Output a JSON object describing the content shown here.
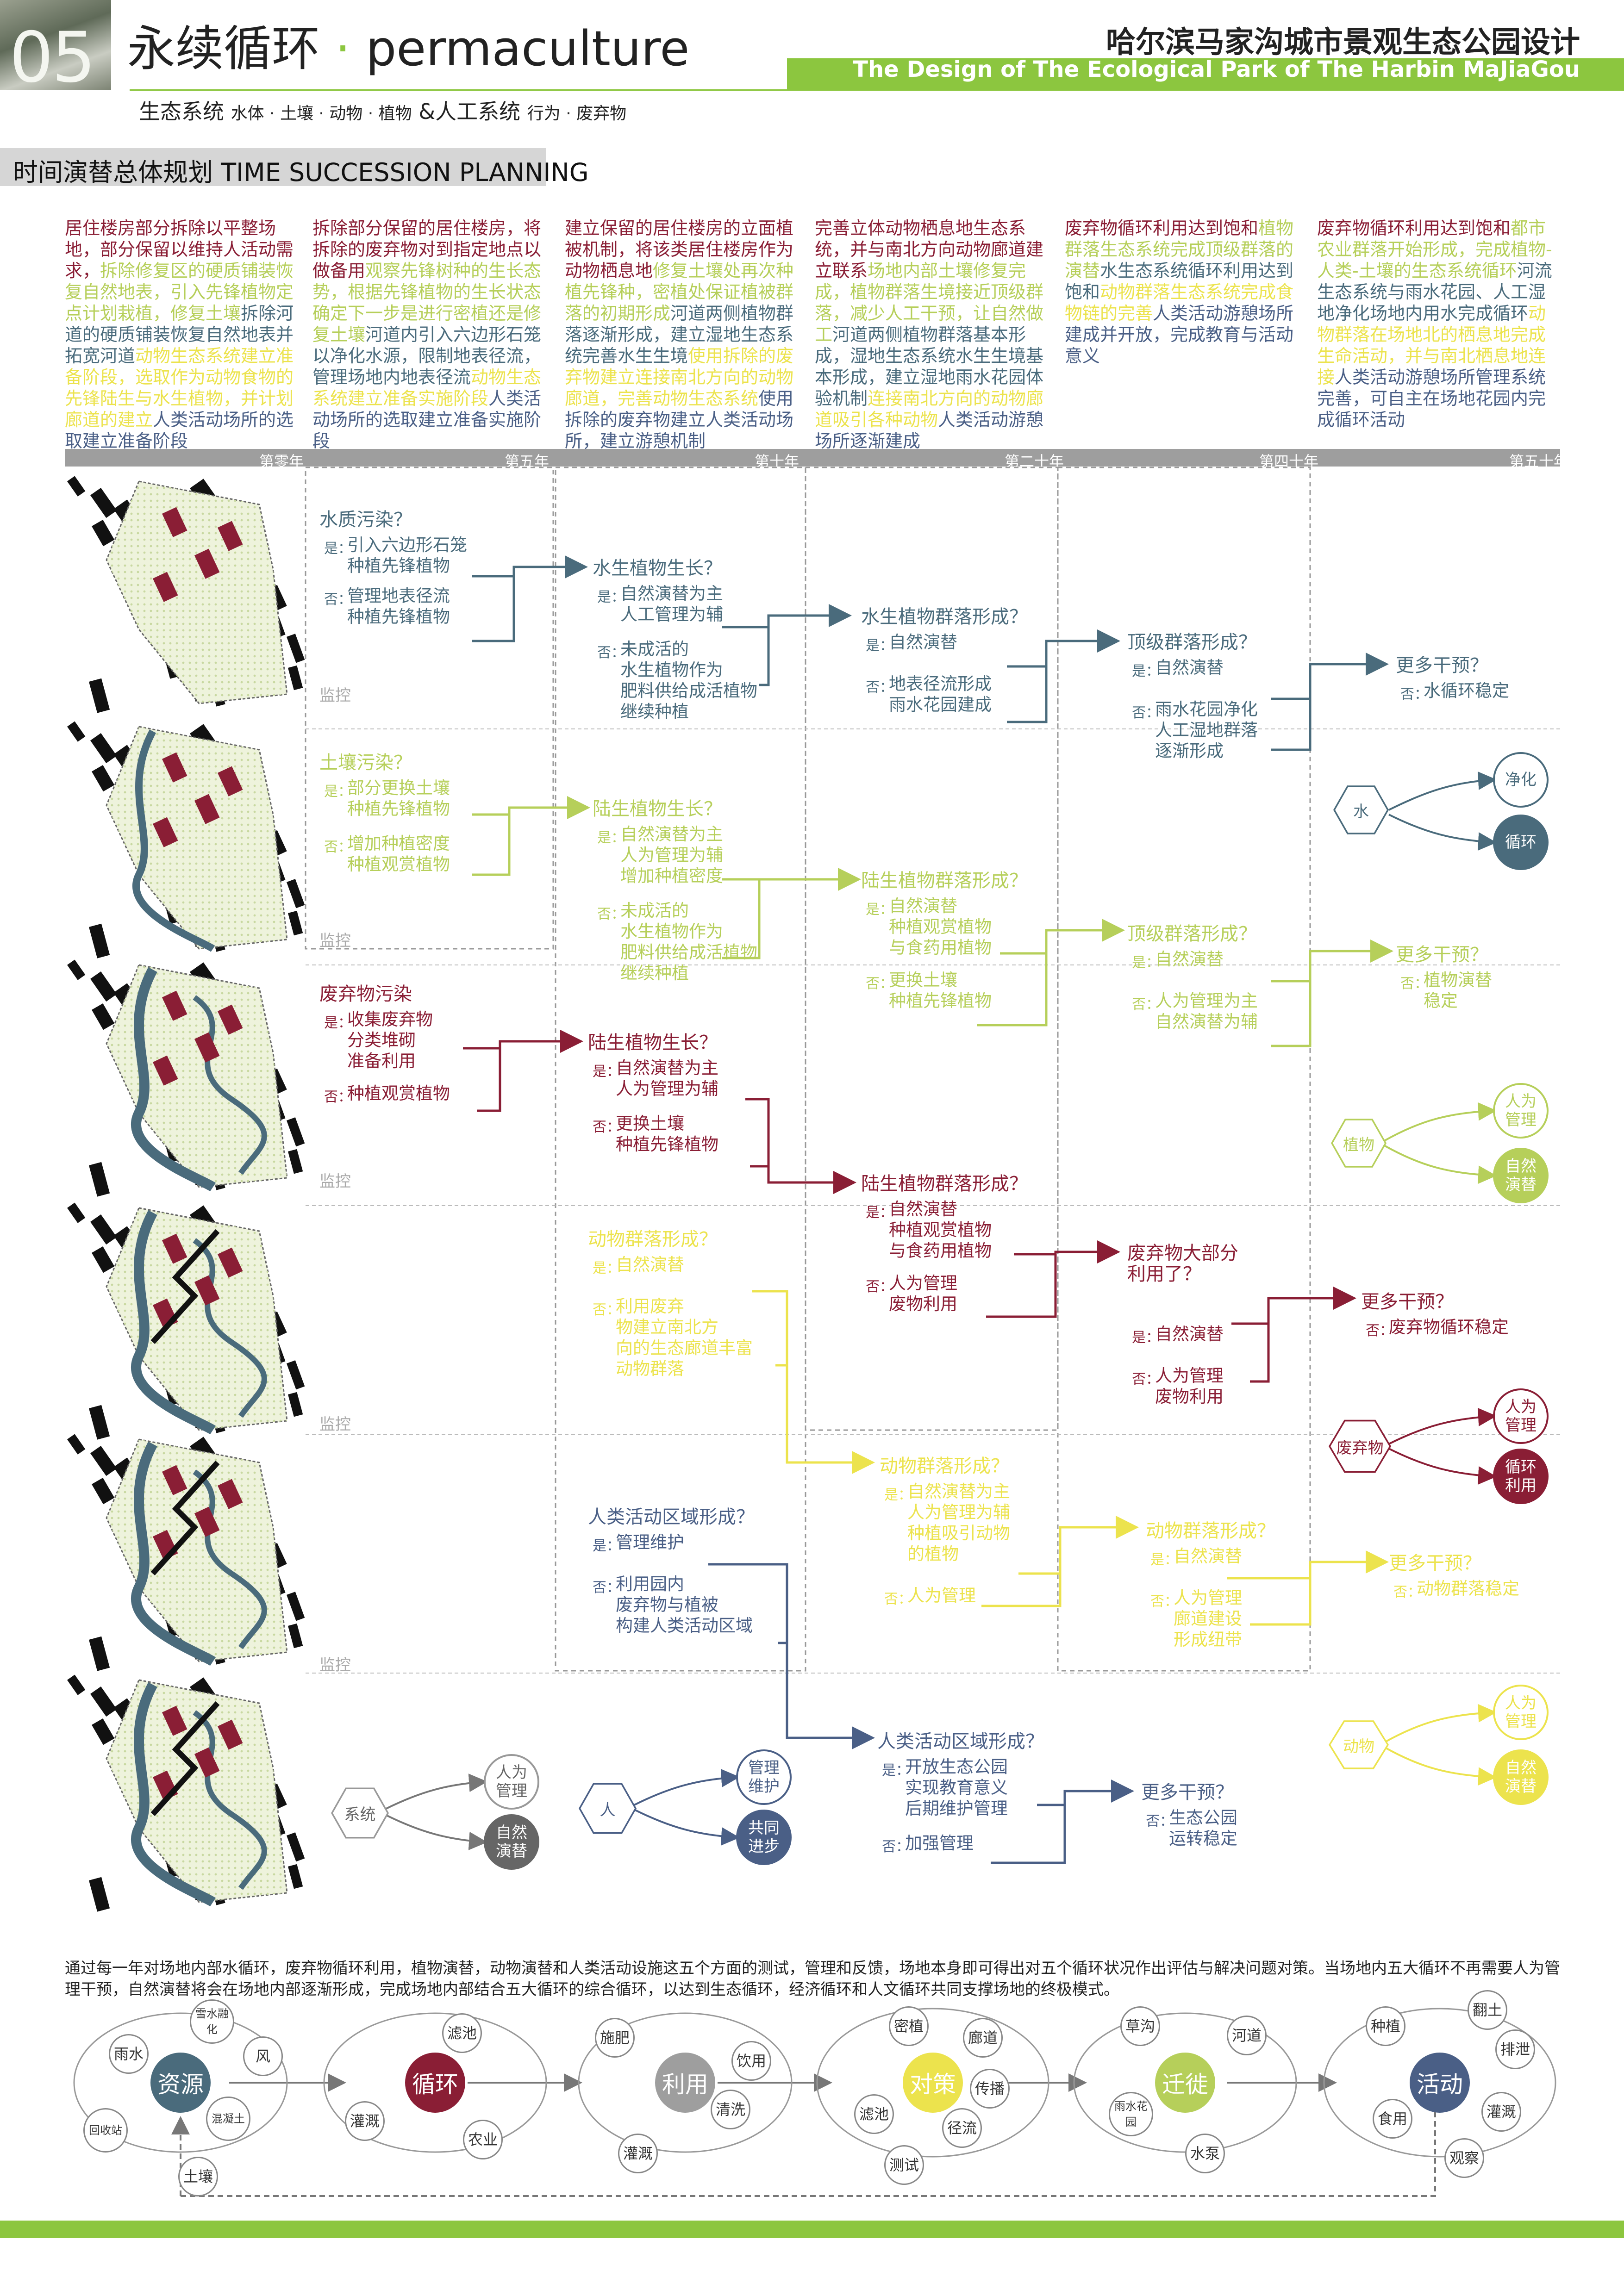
{
  "header": {
    "number": "05",
    "title_cn": "永续循环",
    "dot": "·",
    "title_en": "permaculture",
    "project_cn": "哈尔滨马家沟城市景观生态公园设计",
    "project_en": "The Design of The Ecological Park of The Harbin MaJiaGou",
    "subtitle_a": "生态系统",
    "subtitle_a_small": "水体 · 土壤 · 动物 · 植物",
    "subtitle_b": "&人工系统",
    "subtitle_b_small": "行为 · 废弃物"
  },
  "section_title": "时间演替总体规划 TIME SUCCESSION PLANNING",
  "colors": {
    "water": "#4a6b7c",
    "soil": "#b6cf5a",
    "waste": "#8a1e35",
    "animal": "#ece34d",
    "human": "#4a5f86",
    "accent": "#8cc63f"
  },
  "columns": [
    {
      "parts": [
        [
          "居住楼房部分拆除以平整场地，部分保留以维持人活动需求，",
          "#8a1e35"
        ],
        [
          "拆除修复区的硬质铺装恢复自然地表，引入先锋植物定点计划栽植，修复土壤",
          "#b6cf5a"
        ],
        [
          "拆除河道的硬质铺装恢复自然地表并拓宽河道",
          "#4a6b7c"
        ],
        [
          "动物生态系统建立准备阶段，选取作为动物食物的先锋陆生与水生植物，并计划廊道的建立",
          "#ece34d"
        ],
        [
          "人类活动场所的选取建立准备阶段",
          "#4a5f86"
        ]
      ]
    },
    {
      "parts": [
        [
          "拆除部分保留的居住楼房，将拆除的废弃物对到指定地点以做备用",
          "#8a1e35"
        ],
        [
          "观察先锋树种的生长态势，根据先锋植物的生长状态确定下一步是进行密植还是修复土壤",
          "#b6cf5a"
        ],
        [
          "河道内引入六边形石笼以净化水源，限制地表径流，管理场地内地表径流",
          "#4a6b7c"
        ],
        [
          "动物生态系统建立准备实施阶段",
          "#ece34d"
        ],
        [
          "人类活动场所的选取建立准备实施阶段",
          "#4a5f86"
        ]
      ]
    },
    {
      "parts": [
        [
          "建立保留的居住楼房的立面植被机制，将该类居住楼房作为动物栖息地",
          "#8a1e35"
        ],
        [
          "修复土壤处再次种植先锋种，密植处保证植被群落的初期形成",
          "#b6cf5a"
        ],
        [
          "河道两侧植物群落逐渐形成，建立湿地生态系统完善水生生境",
          "#4a6b7c"
        ],
        [
          "使用拆除的废弃物建立连接南北方向的动物廊道，完善动物生态系统",
          "#ece34d"
        ],
        [
          "使用拆除的废弃物建立人类活动场所，建立游憩机制",
          "#4a5f86"
        ]
      ]
    },
    {
      "parts": [
        [
          "完善立体动物栖息地生态系统，并与南北方向动物廊道建立联系",
          "#8a1e35"
        ],
        [
          "场地内部土壤修复完成，植物群落生境接近顶级群落，减少人工干预，让自然做工",
          "#b6cf5a"
        ],
        [
          "河道两侧植物群落基本形成，湿地生态系统水生生境基本形成，建立湿地雨水花园体验机制",
          "#4a6b7c"
        ],
        [
          "连接南北方向的动物廊道吸引各种动物",
          "#ece34d"
        ],
        [
          "人类活动游憩场所逐渐建成",
          "#4a5f86"
        ]
      ]
    },
    {
      "parts": [
        [
          "废弃物循环利用达到饱和",
          "#8a1e35"
        ],
        [
          "植物群落生态系统完成顶级群落的演替",
          "#b6cf5a"
        ],
        [
          "水生态系统循环利用达到饱和",
          "#4a6b7c"
        ],
        [
          "动物群落生态系统完成食物链的完善",
          "#ece34d"
        ],
        [
          "人类活动游憩场所建成并开放，完成教育与活动意义",
          "#4a5f86"
        ]
      ]
    },
    {
      "parts": [
        [
          "废弃物循环利用达到饱和",
          "#8a1e35"
        ],
        [
          "都市农业群落开始形成，完成植物-人类-土壤的生态系统循环",
          "#b6cf5a"
        ],
        [
          "河流生态系统与雨水花园、人工湿地净化场地内用水完成循环",
          "#4a6b7c"
        ],
        [
          "动物群落在场地北的栖息地完成生命活动，并与南北栖息地连接",
          "#ece34d"
        ],
        [
          "人类活动游憩场所管理系统完善，可自主在场地花园内完成循环活动",
          "#4a5f86"
        ]
      ]
    }
  ],
  "timeline": [
    "第零年",
    "第五年",
    "第十年",
    "第二十年",
    "第四十年",
    "第五十年"
  ],
  "yes_label": "是：",
  "no_label": "否：",
  "monitor": "监控",
  "diagram": {
    "water": {
      "q0": "水质污染？",
      "q0_yes": [
        "引入六边形石笼",
        "种植先锋植物"
      ],
      "q0_no": [
        "管理地表径流",
        "种植先锋植物"
      ],
      "q1": "水生植物生长？",
      "q1_yes": [
        "自然演替为主",
        "人工管理为辅"
      ],
      "q1_no": [
        "未成活的",
        "水生植物作为",
        "肥料供给成活植物",
        "继续种植"
      ],
      "q2": "水生植物群落形成？",
      "q2_yes": [
        "自然演替"
      ],
      "q2_no": [
        "地表径流形成",
        "雨水花园建成"
      ],
      "q3": "顶级群落形成？",
      "q3_yes": [
        "自然演替"
      ],
      "q3_no": [
        "雨水花园净化",
        "人工湿地群落",
        "逐渐形成"
      ],
      "q4": "更多干预？",
      "q4_no": [
        "水循环稳定"
      ],
      "hub": "水",
      "out1": "净化",
      "out2": "循环"
    },
    "soil": {
      "q0": "土壤污染？",
      "q0_yes": [
        "部分更换土壤",
        "种植先锋植物"
      ],
      "q0_no": [
        "增加种植密度",
        "种植观赏植物"
      ],
      "q1": "陆生植物生长？",
      "q1_yes": [
        "自然演替为主",
        "人为管理为辅",
        "增加种植密度"
      ],
      "q1_no": [
        "未成活的",
        "水生植物作为",
        "肥料供给成活植物",
        "继续种植"
      ],
      "q2": "陆生植物群落形成？",
      "q2_yes": [
        "自然演替",
        "种植观赏植物",
        "与食药用植物"
      ],
      "q2_no": [
        "更换土壤",
        "种植先锋植物"
      ],
      "q3": "顶级群落形成？",
      "q3_yes": [
        "自然演替"
      ],
      "q3_no": [
        "人为管理为主",
        "自然演替为辅"
      ],
      "q4": "更多干预？",
      "q4_no": [
        "植物演替",
        "稳定"
      ],
      "hub": "植物",
      "out1": "人为管理",
      "out2": "自然演替"
    },
    "waste": {
      "q0": "废弃物污染",
      "q0_yes": [
        "收集废弃物",
        "分类堆砌",
        "准备利用"
      ],
      "q0_no": [
        "种植观赏植物"
      ],
      "q1": "陆生植物生长？",
      "q1_yes": [
        "自然演替为主",
        "人为管理为辅"
      ],
      "q1_no": [
        "更换土壤",
        "种植先锋植物"
      ],
      "q2": "陆生植物群落形成？",
      "q2_yes": [
        "自然演替",
        "种植观赏植物",
        "与食药用植物"
      ],
      "q2_no": [
        "人为管理",
        "废物利用"
      ],
      "q3": "废弃物大部分利用了？",
      "q3_yes": [
        "自然演替"
      ],
      "q3_no": [
        "人为管理",
        "废物利用"
      ],
      "q4": "更多干预？",
      "q4_no": [
        "废弃物循环稳定"
      ],
      "hub": "废弃物",
      "out1": "人为管理",
      "out2": "循环利用"
    },
    "animal": {
      "q1": "动物群落形成？",
      "q1_yes": [
        "自然演替"
      ],
      "q1_no": [
        "利用废弃",
        "物建立南北方",
        "向的生态廊道丰富",
        "动物群落"
      ],
      "q2": "动物群落形成？",
      "q2_yes": [
        "自然演替为主",
        "人为管理为辅",
        "种植吸引动物",
        "的植物"
      ],
      "q2_no": [
        "人为管理"
      ],
      "q3": "动物群落形成？",
      "q3_yes": [
        "自然演替"
      ],
      "q3_no": [
        "人为管理",
        "廊道建设",
        "形成纽带"
      ],
      "q4": "更多干预？",
      "q4_no": [
        "动物群落稳定"
      ],
      "hub": "动物",
      "out1": "人为管理",
      "out2": "自然演替"
    },
    "human": {
      "q1": "人类活动区域形成？",
      "q1_yes": [
        "管理维护"
      ],
      "q1_no": [
        "利用园内",
        "废弃物与植被",
        "构建人类活动区域"
      ],
      "q2": "人类活动区域形成？",
      "q2_yes": [
        "开放生态公园",
        "实现教育意义",
        "后期维护管理"
      ],
      "q2_no": [
        "加强管理"
      ],
      "q3": "更多干预？",
      "q3_no": [
        "生态公园",
        "运转稳定"
      ],
      "legend_hub": "系统",
      "legend_out1": "人为管理",
      "legend_out2": "自然演替",
      "hub": "人",
      "out1": "管理维护",
      "out2": "共同进步"
    }
  },
  "footer_text": "通过每一年对场地内部水循环，废弃物循环利用，植物演替，动物演替和人类活动设施这五个方面的测试，管理和反馈，场地本身即可得出对五个循环状况作出评估与解决问题对策。当场地内五大循环不再需要人为管理干预，自然演替将会在场地内部逐渐形成，完成场地内部结合五大循环的综合循环，以达到生态循环，经济循环和人文循环共同支撑场地的终极模式。",
  "cycle": {
    "nodes": [
      "资源",
      "循环",
      "利用",
      "对策",
      "迁徙",
      "活动"
    ],
    "node_colors": [
      "#4a6b7c",
      "#8a1e35",
      "#9e9e9e",
      "#ece34d",
      "#b6cf5a",
      "#4a5f86"
    ],
    "labels": [
      "雨水",
      "雪水融化",
      "风",
      "回收站",
      "混凝土",
      "土壤",
      "滤池",
      "灌溉",
      "农业",
      "施肥",
      "饮用",
      "清洗",
      "灌溉",
      "密植",
      "廊道",
      "滤池",
      "传播",
      "径流",
      "测试",
      "草沟",
      "河道",
      "雨水花园",
      "水泵",
      "种植",
      "翻土",
      "排泄",
      "食用",
      "灌溉",
      "观察"
    ]
  }
}
